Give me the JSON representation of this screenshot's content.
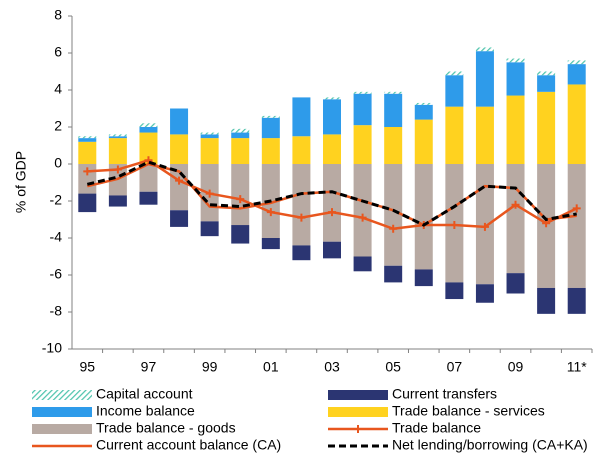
{
  "chart_data": {
    "type": "bar",
    "y_label": "% of GDP",
    "categories": [
      "95",
      null,
      "97",
      null,
      "99",
      null,
      "01",
      null,
      "03",
      null,
      "05",
      null,
      "07",
      null,
      "09",
      null,
      "11*"
    ],
    "ylim": [
      -10,
      8
    ],
    "yticks": [
      -10,
      -8,
      -6,
      -4,
      -2,
      0,
      2,
      4,
      6,
      8
    ],
    "grid": false,
    "legend": "bottom",
    "series": [
      {
        "name": "Trade balance - services",
        "type": "bar",
        "color": "#ffd21f",
        "values": [
          1.2,
          1.4,
          1.7,
          1.6,
          1.4,
          1.4,
          1.4,
          1.5,
          1.6,
          2.1,
          2.0,
          2.4,
          3.1,
          3.1,
          3.7,
          3.9,
          4.3
        ]
      },
      {
        "name": "Income balance",
        "type": "bar",
        "color": "#2e9bea",
        "values": [
          0.2,
          0.1,
          0.3,
          1.4,
          0.2,
          0.3,
          1.1,
          2.1,
          1.9,
          1.7,
          1.8,
          0.8,
          1.7,
          3.0,
          1.8,
          0.9,
          1.1
        ]
      },
      {
        "name": "Capital account",
        "type": "bar",
        "color": "#4fc4ad",
        "hatched": true,
        "values": [
          0.1,
          0.1,
          0.2,
          0.0,
          0.1,
          0.2,
          0.1,
          0.0,
          0.1,
          0.1,
          0.1,
          0.1,
          0.2,
          0.2,
          0.2,
          0.2,
          0.2
        ]
      },
      {
        "name": "Trade balance - goods",
        "type": "bar",
        "color": "#b8aaa3",
        "values": [
          -1.6,
          -1.7,
          -1.5,
          -2.5,
          -3.1,
          -3.3,
          -4.0,
          -4.4,
          -4.2,
          -5.0,
          -5.5,
          -5.7,
          -6.4,
          -6.5,
          -5.9,
          -6.7,
          -6.7
        ]
      },
      {
        "name": "Current transfers",
        "type": "bar",
        "color": "#2b3572",
        "values": [
          -1.0,
          -0.6,
          -0.7,
          -0.9,
          -0.8,
          -1.0,
          -0.6,
          -0.8,
          -0.9,
          -0.8,
          -0.9,
          -0.9,
          -0.9,
          -1.0,
          -1.1,
          -1.4,
          -1.4
        ]
      },
      {
        "name": "Trade balance",
        "type": "line",
        "color": "#e8561e",
        "markers": true,
        "values": [
          -0.4,
          -0.3,
          0.2,
          -0.9,
          -1.6,
          -1.9,
          -2.6,
          -2.9,
          -2.6,
          -2.9,
          -3.5,
          -3.3,
          -3.3,
          -3.4,
          -2.2,
          -3.2,
          -2.4
        ]
      },
      {
        "name": "Current account balance (CA)",
        "type": "line",
        "color": "#e8561e",
        "values": [
          -1.2,
          -0.8,
          0.0,
          -0.4,
          -2.3,
          -2.4,
          -2.1,
          -1.6,
          -1.5,
          -2.0,
          -2.5,
          -3.3,
          -2.3,
          -1.2,
          -1.3,
          -3.0,
          -2.8
        ]
      },
      {
        "name": "Net lending/borrowing (CA+KA)",
        "type": "line",
        "color": "#000000",
        "dashed": true,
        "values": [
          -1.1,
          -0.7,
          0.1,
          -0.4,
          -2.2,
          -2.3,
          -2.0,
          -1.6,
          -1.5,
          -2.0,
          -2.5,
          -3.3,
          -2.3,
          -1.2,
          -1.3,
          -3.0,
          -2.7
        ]
      }
    ]
  }
}
